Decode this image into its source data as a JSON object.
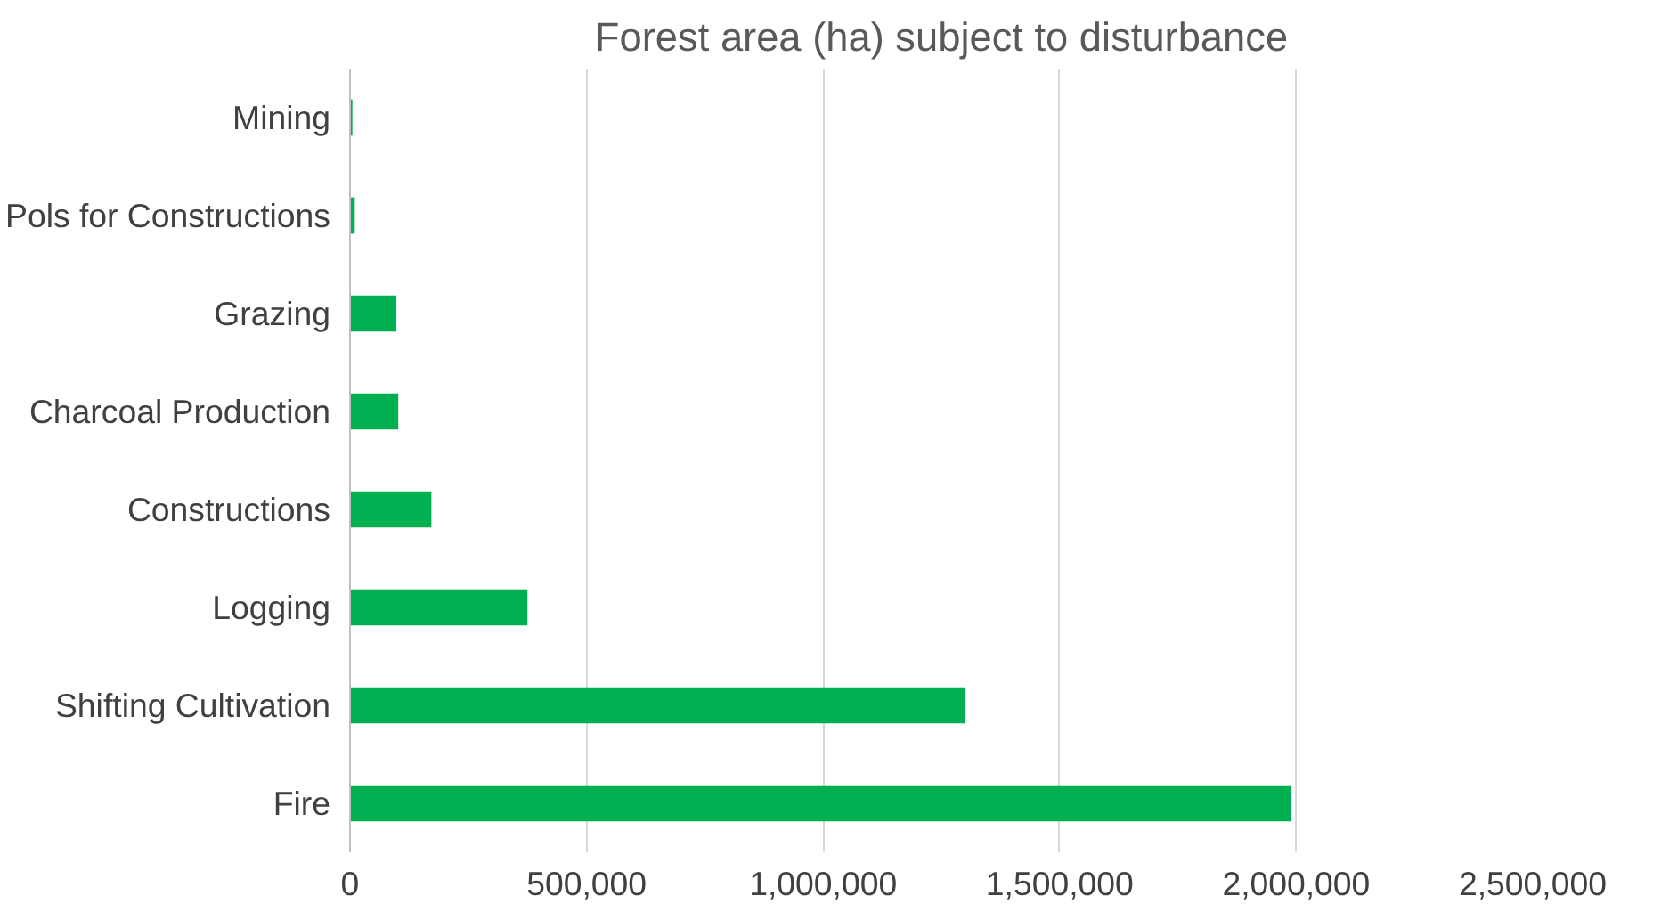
{
  "chart_data": {
    "type": "bar",
    "orientation": "horizontal",
    "title": "Forest area (ha) subject to disturbance",
    "categories": [
      "Mining",
      "Pols for Constructions",
      "Grazing",
      "Charcoal Production",
      "Constructions",
      "Logging",
      "Shifting Cultivation",
      "Fire"
    ],
    "values": [
      5000,
      10000,
      98000,
      102000,
      172000,
      375000,
      1300000,
      1990000
    ],
    "color": "#00b050",
    "xlim": [
      0,
      2500000
    ],
    "xticks": [
      {
        "value": 0,
        "label": "0"
      },
      {
        "value": 500000,
        "label": "500,000"
      },
      {
        "value": 1000000,
        "label": "1,000,000"
      },
      {
        "value": 1500000,
        "label": "1,500,000"
      },
      {
        "value": 2000000,
        "label": "2,000,000"
      },
      {
        "value": 2500000,
        "label": "2,500,000"
      }
    ],
    "grid": "x"
  }
}
